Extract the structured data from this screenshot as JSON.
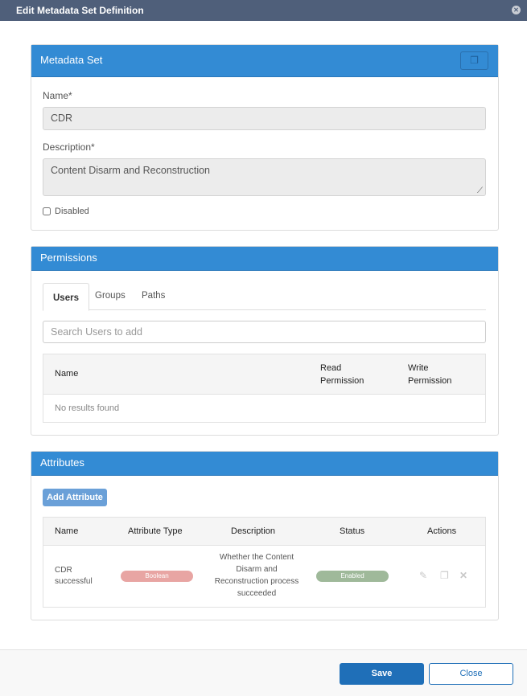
{
  "dialog": {
    "title": "Edit Metadata Set Definition",
    "close_icon": "close-circle-icon"
  },
  "metadata_set": {
    "header": "Metadata Set",
    "copy_icon": "copy-icon",
    "name_label": "Name*",
    "name_value": "CDR",
    "description_label": "Description*",
    "description_value": "Content Disarm and Reconstruction",
    "disabled_label": "Disabled",
    "disabled_checked": false
  },
  "permissions": {
    "header": "Permissions",
    "tabs": [
      {
        "label": "Users",
        "active": true
      },
      {
        "label": "Groups",
        "active": false
      },
      {
        "label": "Paths",
        "active": false
      }
    ],
    "search_placeholder": "Search Users to add",
    "columns": [
      "Name",
      "Read Permission",
      "Write Permission"
    ],
    "empty_text": "No results found"
  },
  "attributes": {
    "header": "Attributes",
    "add_button": "Add Attribute",
    "columns": [
      "Name",
      "Attribute Type",
      "Description",
      "Status",
      "Actions"
    ],
    "rows": [
      {
        "name": "CDR successful",
        "type": "Boolean",
        "description": "Whether the Content Disarm and Reconstruction process succeeded",
        "status": "Enabled",
        "actions": [
          "edit-icon",
          "copy-icon",
          "delete-icon"
        ]
      }
    ],
    "colors": {
      "boolean": "#e8a5a3",
      "enabled": "#9fb99a"
    }
  },
  "footer": {
    "save": "Save",
    "close": "Close"
  },
  "colors": {
    "titlebar": "#4f5f7a",
    "panel_header": "#338bd4",
    "save": "#1f6fb8"
  }
}
